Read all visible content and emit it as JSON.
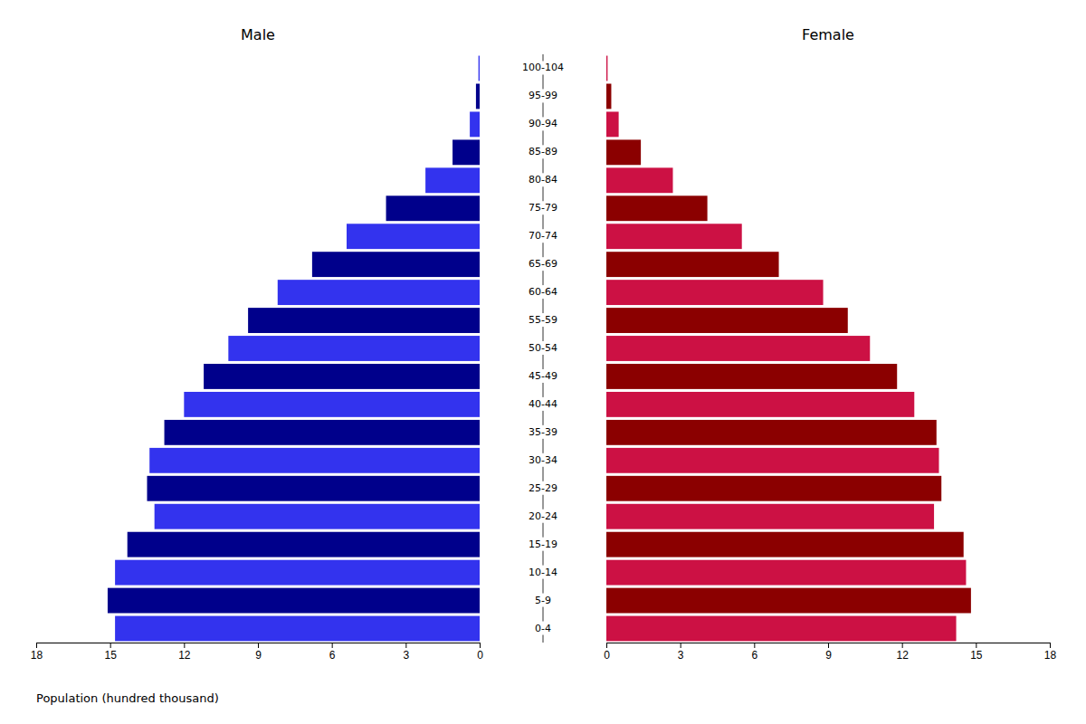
{
  "chart_data": {
    "type": "bar",
    "orientation": "horizontal",
    "xlabel": "Population (hundred thousand)",
    "categories": [
      "0-4",
      "5-9",
      "10-14",
      "15-19",
      "20-24",
      "25-29",
      "30-34",
      "35-39",
      "40-44",
      "45-49",
      "50-54",
      "55-59",
      "60-64",
      "65-69",
      "70-74",
      "75-79",
      "80-84",
      "85-89",
      "90-94",
      "95-99",
      "100-104"
    ],
    "series": [
      {
        "name": "Male",
        "colors": [
          "#3333ee",
          "#00008b",
          "#3333ee",
          "#00008b",
          "#3333ee",
          "#00008b",
          "#3333ee",
          "#00008b",
          "#3333ee",
          "#00008b",
          "#3333ee",
          "#00008b",
          "#3333ee",
          "#00008b",
          "#3333ee",
          "#00008b",
          "#3333ee",
          "#00008b",
          "#3333ee",
          "#00008b",
          "#3333ee"
        ],
        "values": [
          14.8,
          15.1,
          14.8,
          14.3,
          13.2,
          13.5,
          13.4,
          12.8,
          12.0,
          11.2,
          10.2,
          9.4,
          8.2,
          6.8,
          5.4,
          3.8,
          2.2,
          1.1,
          0.4,
          0.15,
          0.05
        ]
      },
      {
        "name": "Female",
        "colors": [
          "#cc1144",
          "#8b0000",
          "#cc1144",
          "#8b0000",
          "#cc1144",
          "#8b0000",
          "#cc1144",
          "#8b0000",
          "#cc1144",
          "#8b0000",
          "#cc1144",
          "#8b0000",
          "#cc1144",
          "#8b0000",
          "#cc1144",
          "#8b0000",
          "#cc1144",
          "#8b0000",
          "#cc1144",
          "#8b0000",
          "#cc1144"
        ],
        "values": [
          14.2,
          14.8,
          14.6,
          14.5,
          13.3,
          13.6,
          13.5,
          13.4,
          12.5,
          11.8,
          10.7,
          9.8,
          8.8,
          7.0,
          5.5,
          4.1,
          2.7,
          1.4,
          0.5,
          0.2,
          0.05
        ]
      }
    ],
    "xlim": [
      0,
      18
    ],
    "xticks": [
      0,
      3,
      6,
      9,
      12,
      15,
      18
    ]
  }
}
